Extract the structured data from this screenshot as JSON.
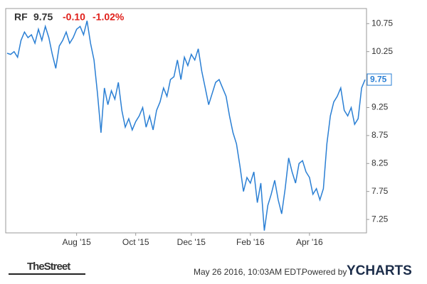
{
  "chart_data": {
    "type": "line",
    "symbol": "RF",
    "price": "9.75",
    "change": "-0.10",
    "change_pct": "-1.02%",
    "color": "#2a7fd4",
    "change_color": "#e0201b",
    "categories": [
      null,
      null,
      null,
      null,
      null,
      null,
      null,
      null,
      null,
      null,
      null,
      null,
      null,
      null,
      null,
      null,
      null,
      null,
      null,
      null,
      "Aug '15",
      null,
      null,
      null,
      null,
      null,
      null,
      null,
      null,
      null,
      null,
      null,
      null,
      null,
      null,
      null,
      null,
      "Oct '15",
      null,
      null,
      null,
      null,
      null,
      null,
      null,
      null,
      null,
      null,
      null,
      null,
      null,
      null,
      null,
      "Dec '15",
      null,
      null,
      null,
      null,
      null,
      null,
      null,
      null,
      null,
      null,
      null,
      null,
      null,
      null,
      null,
      null,
      "Feb '16",
      null,
      null,
      null,
      null,
      null,
      null,
      null,
      null,
      null,
      null,
      null,
      null,
      null,
      null,
      null,
      null,
      "Apr '16",
      null,
      null,
      null,
      null,
      null,
      null,
      null,
      null,
      null,
      null,
      null,
      null,
      null,
      null,
      null,
      null
    ],
    "values": [
      10.22,
      10.2,
      10.25,
      10.15,
      10.45,
      10.6,
      10.5,
      10.55,
      10.4,
      10.65,
      10.45,
      10.7,
      10.5,
      10.2,
      9.95,
      10.35,
      10.45,
      10.6,
      10.4,
      10.5,
      10.65,
      10.7,
      10.55,
      10.8,
      10.4,
      10.1,
      9.5,
      8.8,
      9.6,
      9.3,
      9.55,
      9.4,
      9.7,
      9.2,
      8.9,
      9.05,
      8.85,
      9.0,
      9.1,
      9.25,
      8.9,
      9.1,
      8.85,
      9.2,
      9.35,
      9.6,
      9.45,
      9.75,
      9.8,
      10.1,
      9.75,
      10.15,
      10.0,
      10.2,
      10.1,
      10.3,
      9.9,
      9.6,
      9.3,
      9.5,
      9.7,
      9.75,
      9.6,
      9.45,
      9.1,
      8.8,
      8.6,
      8.2,
      7.75,
      8.0,
      7.9,
      8.1,
      7.55,
      7.9,
      7.05,
      7.5,
      7.7,
      7.95,
      7.6,
      7.35,
      7.8,
      8.35,
      8.1,
      7.9,
      8.25,
      8.3,
      8.1,
      8.0,
      7.7,
      7.8,
      7.6,
      7.8,
      8.6,
      9.1,
      9.35,
      9.45,
      9.6,
      9.2,
      9.1,
      9.25,
      8.95,
      9.05,
      9.6,
      9.75
    ],
    "ylim": [
      7.01,
      11.02
    ],
    "yticks": [
      7.25,
      7.75,
      8.25,
      8.75,
      9.25,
      9.75,
      10.25,
      10.75
    ],
    "source": "TheStreet",
    "timestamp": "May 26 2016, 10:03AM EDT.",
    "powered_by": "Powered by",
    "brand": "YCHARTS"
  }
}
